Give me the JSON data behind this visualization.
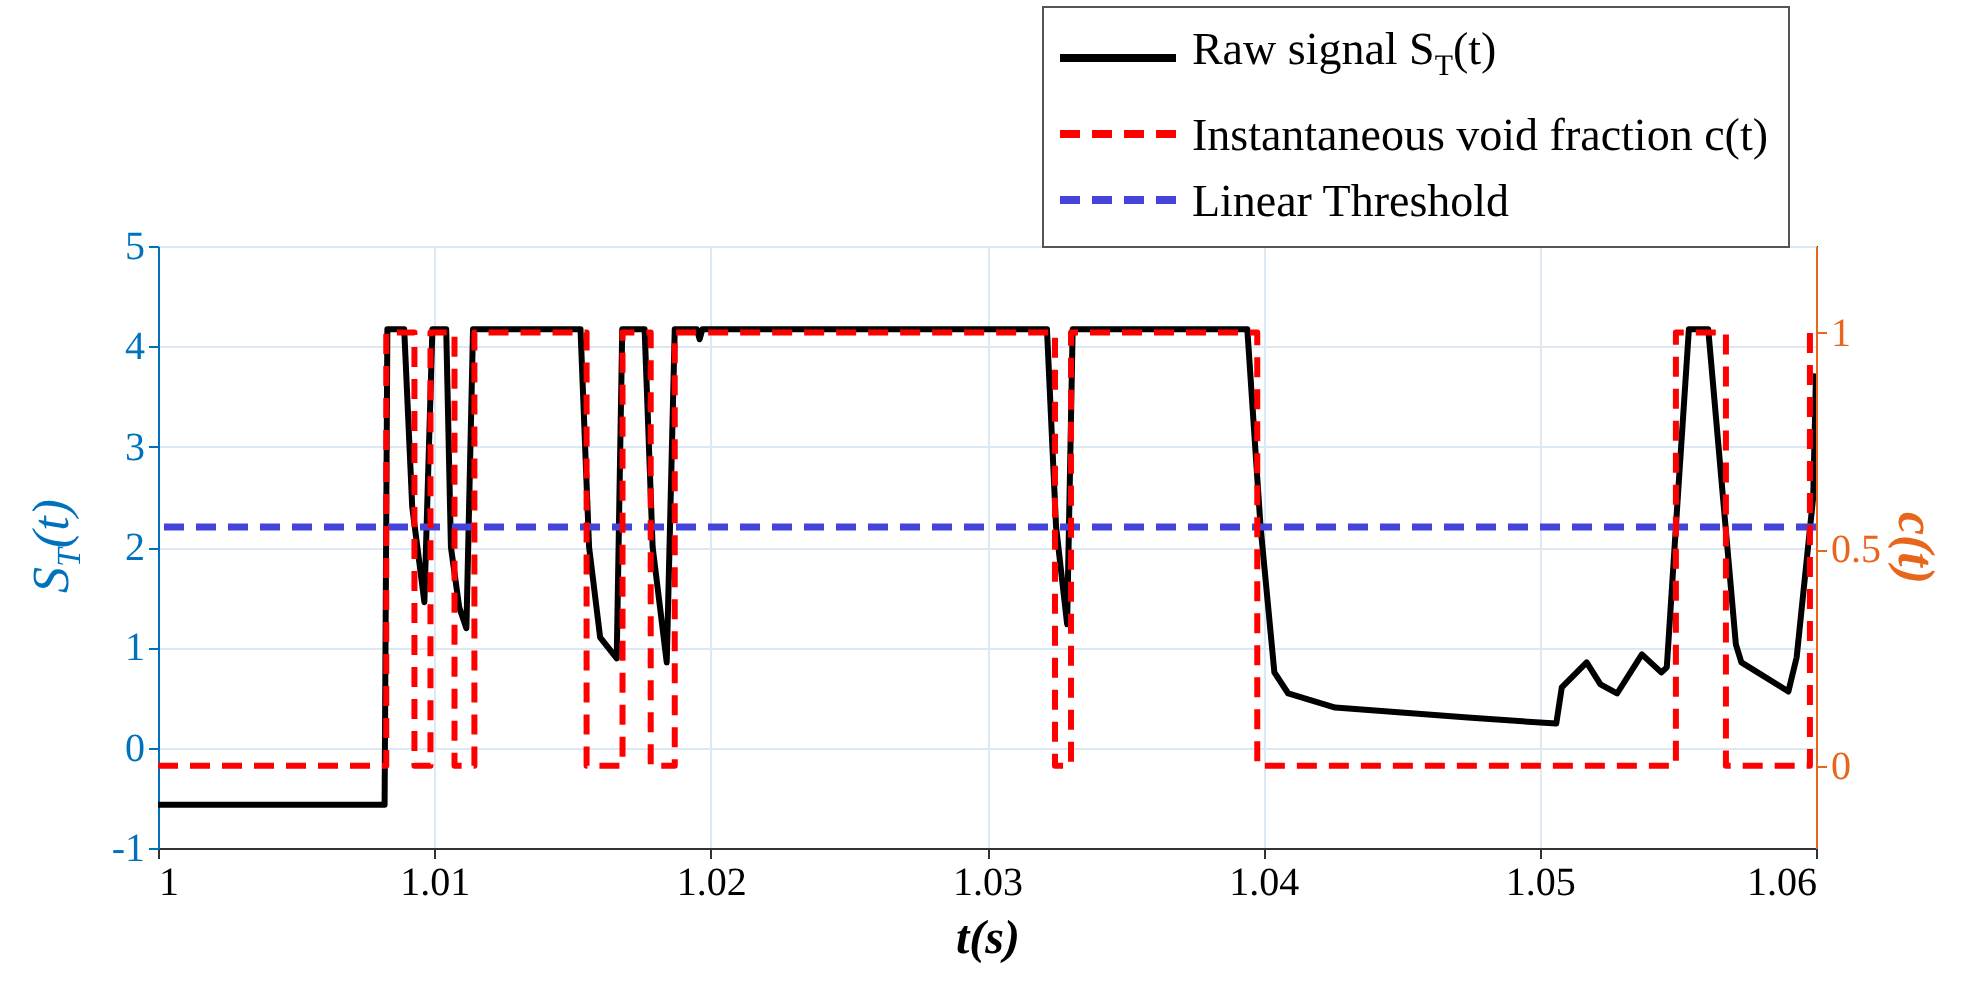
{
  "chart_data": {
    "type": "line",
    "xlabel": "t(s)",
    "ylabel": "S$_{T}$(t)",
    "y2label": "c(t)",
    "xlim": [
      1,
      1.06
    ],
    "xticks": [
      1,
      1.01,
      1.02,
      1.03,
      1.04,
      1.05,
      1.06
    ],
    "ylim": [
      -1,
      5
    ],
    "yticks": [
      -1,
      0,
      1,
      2,
      3,
      4,
      5
    ],
    "y2lim": [
      -0.19,
      1.2
    ],
    "y2ticks": [
      0,
      0.5,
      1
    ],
    "grid": true,
    "legend": "top right",
    "series": [
      {
        "name": "Raw signal S$_{T}$(t)",
        "color": "#000000",
        "type": "line",
        "line_style": "solid",
        "x": [
          1,
          1.0082,
          1.0083,
          1.00891,
          1.0092,
          1.00964,
          1.00993,
          1.01043,
          1.0106,
          1.0109,
          1.01116,
          1.0114,
          1.01529,
          1.0156,
          1.016,
          1.0166,
          1.0168,
          1.01761,
          1.0179,
          1.01841,
          1.0187,
          1.0195,
          1.0196,
          1.0197,
          1.03217,
          1.0325,
          1.0329,
          1.0331,
          1.03942,
          1.0399,
          1.0404,
          1.0409,
          1.0426,
          1.0474,
          1.0506,
          1.0508,
          1.0517,
          1.0522,
          1.0528,
          1.0537,
          1.0544,
          1.0546,
          1.055,
          1.0554,
          1.0561,
          1.0571,
          1.0573,
          1.059,
          1.0593,
          1.0599,
          1.06
        ],
        "values": [
          -0.57,
          -0.57,
          4.17,
          4.17,
          2.4,
          1.45,
          4.17,
          4.17,
          2.0,
          1.4,
          1.19,
          4.17,
          4.17,
          2.0,
          1.1,
          0.89,
          4.17,
          4.17,
          2.0,
          0.85,
          4.17,
          4.17,
          4.07,
          4.17,
          4.17,
          2.2,
          1.23,
          4.17,
          4.17,
          2.2,
          0.75,
          0.54,
          0.4,
          0.3,
          0.24,
          0.6,
          0.85,
          0.63,
          0.54,
          0.93,
          0.75,
          0.8,
          2.5,
          4.17,
          4.17,
          1.03,
          0.85,
          0.56,
          0.9,
          2.5,
          3.73
        ]
      },
      {
        "name": "Instantaneous void fraction c(t)",
        "color": "#ff0000",
        "type": "step",
        "axis": "y2",
        "line_style": "dashed",
        "x": [
          1,
          1.00826,
          1.00928,
          1.00986,
          1.01073,
          1.01145,
          1.01551,
          1.01681,
          1.01783,
          1.0187,
          1.03246,
          1.03304,
          1.03978,
          1.05493,
          1.05674,
          1.05978,
          1.06
        ],
        "values": [
          0,
          1,
          0,
          1,
          0,
          1,
          0,
          1,
          0,
          1,
          0,
          1,
          0,
          1,
          0,
          1,
          1
        ]
      }
    ],
    "ref_lines": [
      {
        "axis": "y",
        "value": 2.2,
        "label": "Linear Threshold",
        "color": "#4444dd",
        "line_style": "dashed"
      }
    ]
  }
}
